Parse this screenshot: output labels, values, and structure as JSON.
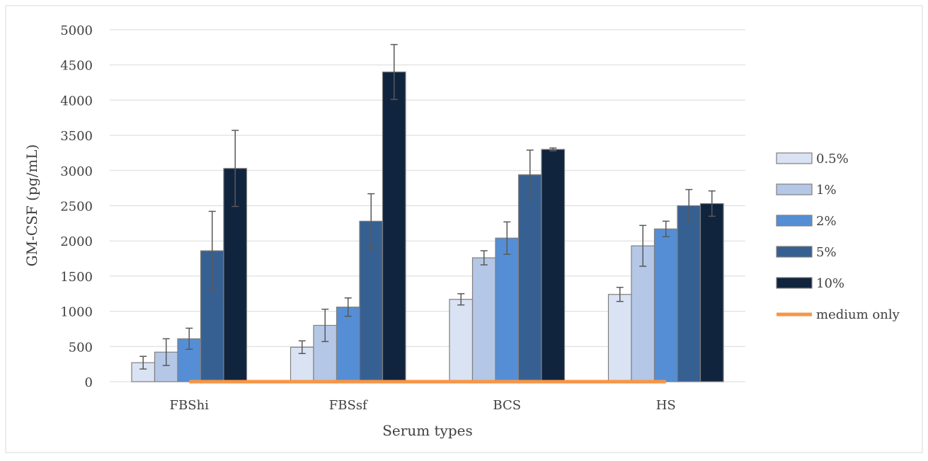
{
  "chart_data": {
    "type": "bar",
    "title": "",
    "xlabel": "Serum types",
    "ylabel": "GM-CSF (pg/mL)",
    "ylim": [
      0,
      5000
    ],
    "yticks": [
      0,
      500,
      1000,
      1500,
      2000,
      2500,
      3000,
      3500,
      4000,
      4500,
      5000
    ],
    "grid": true,
    "legend_position": "right",
    "categories": [
      "FBShi",
      "FBSsf",
      "BCS",
      "HS"
    ],
    "series": [
      {
        "name": "0.5%",
        "color": "#dae3f3",
        "values": [
          270,
          490,
          1170,
          1240
        ],
        "errors": [
          90,
          90,
          80,
          100
        ]
      },
      {
        "name": "1%",
        "color": "#b4c7e7",
        "values": [
          420,
          800,
          1760,
          1930
        ],
        "errors": [
          190,
          230,
          100,
          290
        ]
      },
      {
        "name": "2%",
        "color": "#558ed5",
        "values": [
          610,
          1060,
          2040,
          2170
        ],
        "errors": [
          150,
          130,
          230,
          110
        ]
      },
      {
        "name": "5%",
        "color": "#376092",
        "values": [
          1860,
          2280,
          2940,
          2500
        ],
        "errors": [
          560,
          390,
          350,
          230
        ]
      },
      {
        "name": "10%",
        "color": "#10243e",
        "values": [
          3030,
          4400,
          3300,
          2530
        ],
        "errors": [
          540,
          390,
          20,
          180
        ]
      }
    ],
    "reference_line": {
      "name": "medium only",
      "value": 0,
      "color": "#f79646"
    }
  }
}
